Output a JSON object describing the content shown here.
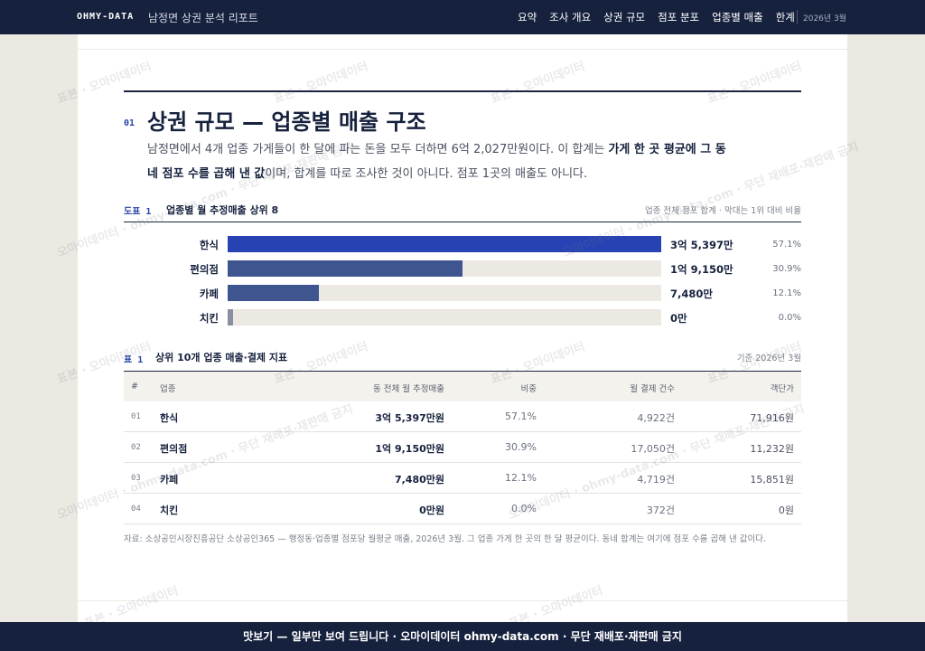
{
  "header": {
    "brand": "OHMY-DATA",
    "report_title": "남정면 상권 분석 리포트",
    "nav": [
      "요약",
      "조사 개요",
      "상권 규모",
      "점포 분포",
      "업종별 매출",
      "한계"
    ],
    "date": "2026년 3월"
  },
  "section": {
    "number": "01",
    "title": "상권 규모 — 업종별 매출 구조",
    "lead_1": "남정면에서 4개 업종 가게들이 한 달에 파는 돈을 모두 더하면 6억 2,027만원이다. 이 합계는 ",
    "lead_bold": "가게 한 곳 평균에 그 동네 점포 수를 곱해 낸 값",
    "lead_2": "이며, 합계를 따로 조사한 것이 아니다. 점포 1곳의 매출도 아니다."
  },
  "figure": {
    "label": "도표 1",
    "title": "업종별 월 추정매출 상위 8",
    "note": "업종 전체 점포 합계 · 막대는 1위 대비 비율"
  },
  "chart_data": {
    "type": "bar",
    "title": "업종별 월 추정매출 상위 8",
    "categories": [
      "한식",
      "편의점",
      "카페",
      "치킨"
    ],
    "values": [
      353970000,
      191500000,
      74800000,
      0
    ],
    "value_labels": [
      "3억 5,397만",
      "1억 9,150만",
      "7,480만",
      "0만"
    ],
    "share_labels": [
      "57.1%",
      "30.9%",
      "12.1%",
      "0.0%"
    ],
    "ratio_to_top": [
      1.0,
      0.541,
      0.211,
      0.0
    ],
    "colors": [
      "#2743b3",
      "#3f5590",
      "#3f5590",
      "#8a8fa0"
    ]
  },
  "table": {
    "label": "표 1",
    "title": "상위 10개 업종 매출·결제 지표",
    "note": "기준 2026년 3월",
    "headers": [
      "#",
      "업종",
      "동 전체 월 추정매출",
      "비중",
      "월 결제 건수",
      "객단가"
    ],
    "rows": [
      {
        "no": "01",
        "cat": "한식",
        "sales": "3억 5,397만원",
        "share": "57.1%",
        "count": "4,922건",
        "avg": "71,916원"
      },
      {
        "no": "02",
        "cat": "편의점",
        "sales": "1억 9,150만원",
        "share": "30.9%",
        "count": "17,050건",
        "avg": "11,232원"
      },
      {
        "no": "03",
        "cat": "카페",
        "sales": "7,480만원",
        "share": "12.1%",
        "count": "4,719건",
        "avg": "15,851원"
      },
      {
        "no": "04",
        "cat": "치킨",
        "sales": "0만원",
        "share": "0.0%",
        "count": "372건",
        "avg": "0원"
      }
    ]
  },
  "source": "자료: 소상공인시장진흥공단 소상공인365 — 행정동·업종별 점포당 월평균 매출, 2026년 3월. 그 업종 가게 한 곳의 한 달 평균이다. 동네 합계는 여기에 점포 수를 곱해 낸 값이다.",
  "watermark": {
    "a": "표본 · 오마이데이터",
    "b": "오마이데이터 · ohmy-data.com · 무단 재배포·재판매 금지"
  },
  "banner": "맛보기 — 일부만 보여 드립니다 · 오마이데이터 ohmy-data.com · 무단 재배포·재판매 금지"
}
